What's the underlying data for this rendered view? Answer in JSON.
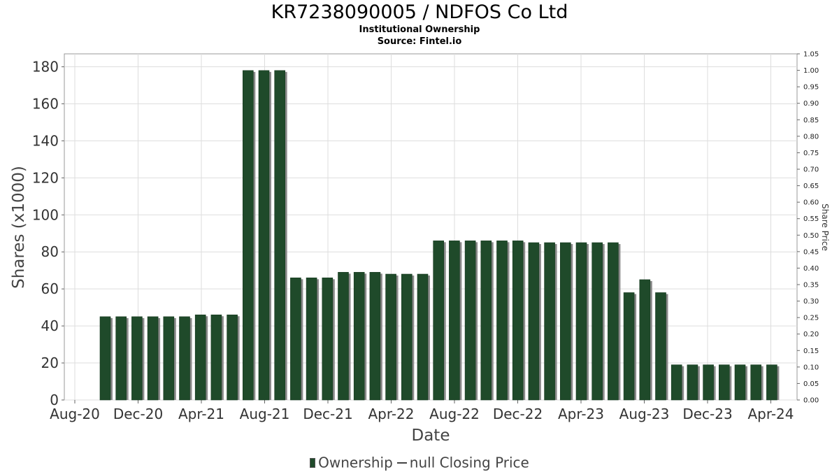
{
  "chart_data": {
    "type": "bar",
    "title": "KR7238090005 / NDFOS Co Ltd",
    "subtitle": "Institutional Ownership",
    "source": "Source: Fintel.io",
    "xlabel": "Date",
    "ylabel": "Shares (x1000)",
    "y2label": "Share Price",
    "ylim": [
      0,
      187
    ],
    "y2lim": [
      0,
      1.05
    ],
    "yticks": [
      0,
      20,
      40,
      60,
      80,
      100,
      120,
      140,
      160,
      180
    ],
    "y2ticks": [
      "0.00",
      "0.05",
      "0.10",
      "0.15",
      "0.20",
      "0.25",
      "0.30",
      "0.35",
      "0.40",
      "0.45",
      "0.50",
      "0.55",
      "0.60",
      "0.65",
      "0.70",
      "0.75",
      "0.80",
      "0.85",
      "0.90",
      "0.95",
      "1.00",
      "1.05"
    ],
    "xticks": [
      "Aug-20",
      "Dec-20",
      "Apr-21",
      "Aug-21",
      "Dec-21",
      "Apr-22",
      "Aug-22",
      "Dec-22",
      "Apr-23",
      "Aug-23",
      "Dec-23",
      "Apr-24"
    ],
    "grid": true,
    "legend_position": "bottom",
    "colors": {
      "bar": "#1f4a2a",
      "bar_shadow": "#8a8a8a",
      "grid": "#dddddd"
    },
    "series": [
      {
        "name": "Ownership",
        "values": [
          45,
          45,
          45,
          45,
          45,
          45,
          46,
          46,
          46,
          178,
          178,
          178,
          66,
          66,
          66,
          69,
          69,
          69,
          68,
          68,
          68,
          86,
          86,
          86,
          86,
          86,
          86,
          85,
          85,
          85,
          85,
          85,
          85,
          58,
          65,
          58,
          19,
          19,
          19,
          19,
          19,
          19,
          19
        ]
      },
      {
        "name": "null Closing Price",
        "values": []
      }
    ]
  }
}
